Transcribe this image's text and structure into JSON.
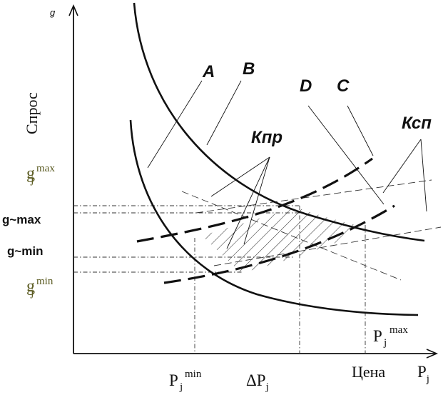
{
  "axes": {
    "y_axis_letter": "g",
    "y_axis_label": "Спрос",
    "x_axis_label_word": "Цена",
    "x_axis_label_symbol_base": "P",
    "x_axis_label_symbol_sub": "j"
  },
  "curve_labels": {
    "A": "A",
    "B": "B",
    "C": "C",
    "D": "D",
    "kpr": "Кпр",
    "ksp": "Ксп"
  },
  "y_marks": {
    "g_j_max": {
      "base": "g",
      "sub": "j",
      "sup": "max"
    },
    "g_tilde_max": "g~max",
    "g_tilde_min": "g~min",
    "g_j_min": {
      "base": "g",
      "sub": "j",
      "sup": "min"
    }
  },
  "x_marks": {
    "p_j_min": {
      "base": "P",
      "sub": "j",
      "sup": "min"
    },
    "delta_p_j": {
      "base": "ΔP",
      "sub": "j"
    },
    "p_j_max": {
      "base": "P",
      "sub": "j",
      "sup": "max"
    }
  },
  "colors": {
    "ink": "#111111",
    "olive_labels": "#5b5b22",
    "hatch": "#333333"
  }
}
